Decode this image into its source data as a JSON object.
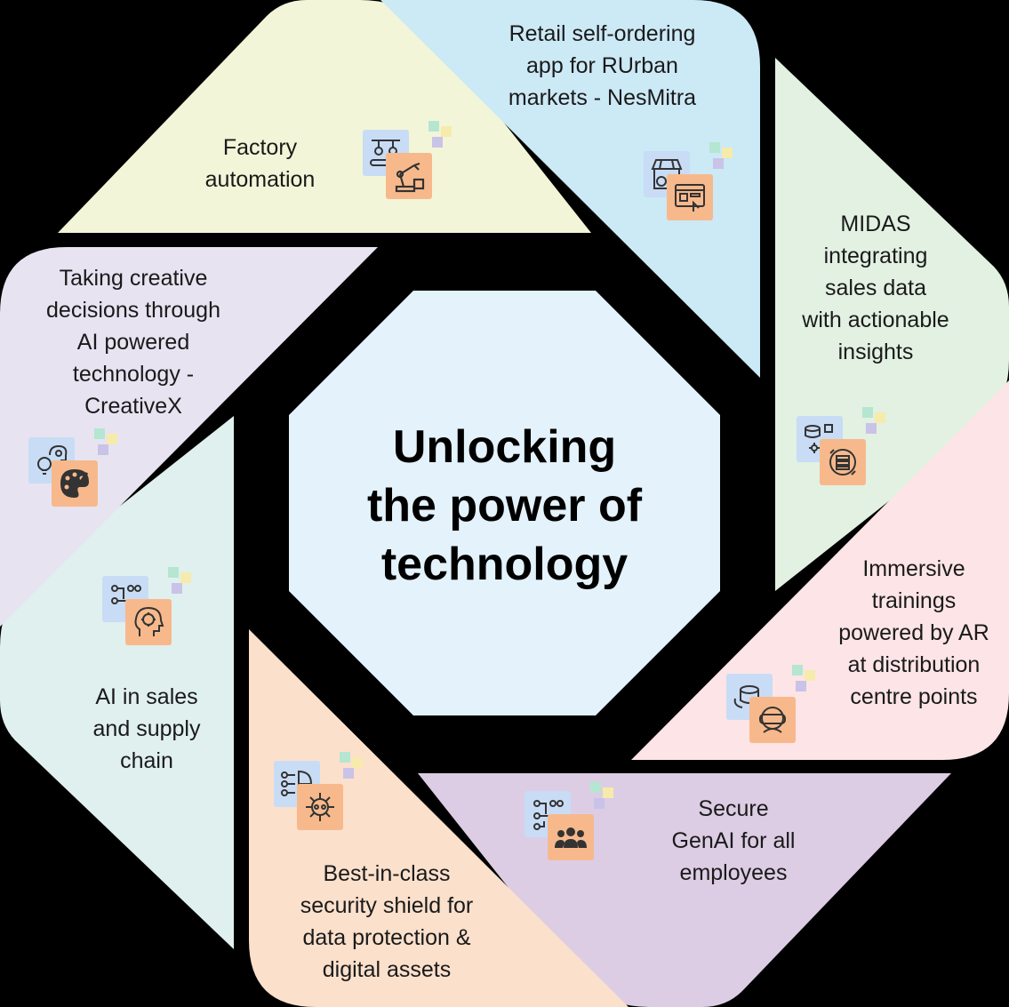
{
  "center": {
    "title": "Unlocking\nthe power of\ntechnology",
    "fill": "#e3f2fb"
  },
  "segments": [
    {
      "id": "factory",
      "text": "Factory\nautomation",
      "color": "#f3f5d8",
      "icon": "robot-arm-icon"
    },
    {
      "id": "retail",
      "text": "Retail self-ordering\napp for RUrban\nmarkets - NesMitra",
      "color": "#cce9f6",
      "icon": "shop-online-ordering-icon"
    },
    {
      "id": "midas",
      "text": "MIDAS\nintegrating\nsales data\nwith actionable\ninsights",
      "color": "#e2f1e2",
      "icon": "data-integration-icon"
    },
    {
      "id": "ar",
      "text": "Immersive\ntrainings\npowered by AR\nat distribution\ncentre points",
      "color": "#fde4e6",
      "icon": "vr-headset-icon"
    },
    {
      "id": "genai",
      "text": "Secure\nGenAI for all\nemployees",
      "color": "#dccde4",
      "icon": "employees-group-icon"
    },
    {
      "id": "security",
      "text": "Best-in-class\nsecurity shield for\ndata protection &\ndigital assets",
      "color": "#fbe0cc",
      "icon": "security-chip-icon"
    },
    {
      "id": "ai-sales",
      "text": "AI in sales\nand supply\nchain",
      "color": "#e0f0ee",
      "icon": "ai-brain-icon"
    },
    {
      "id": "creative",
      "text": "Taking creative\ndecisions through\nAI powered\ntechnology -\nCreativeX",
      "color": "#e8e3f1",
      "icon": "palette-icon"
    }
  ]
}
